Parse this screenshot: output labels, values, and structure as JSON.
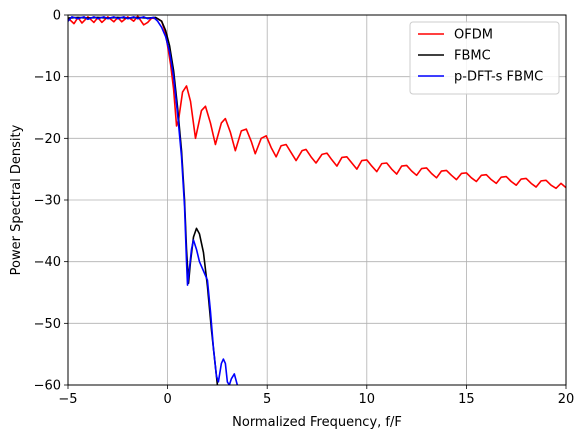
{
  "chart_data": {
    "type": "line",
    "title": "",
    "xlabel": "Normalized Frequency, f/F",
    "ylabel": "Power Spectral Density",
    "xlim": [
      -5,
      20
    ],
    "ylim": [
      -60,
      0
    ],
    "x_ticks": [
      -5,
      0,
      5,
      10,
      15,
      20
    ],
    "x_tick_labels": [
      "−5",
      "0",
      "5",
      "10",
      "15",
      "20"
    ],
    "y_ticks": [
      -60,
      -50,
      -40,
      -30,
      -20,
      -10,
      0
    ],
    "y_tick_labels": [
      "−60",
      "−50",
      "−40",
      "−30",
      "−20",
      "−10",
      "0"
    ],
    "grid": true,
    "legend_position": "top-right",
    "series": [
      {
        "name": "OFDM",
        "color": "#ff0000",
        "points": [
          [
            -5,
            -0.5
          ],
          [
            -4.7,
            -1.4
          ],
          [
            -4.5,
            -0.4
          ],
          [
            -4.3,
            -1.3
          ],
          [
            -4.0,
            -0.3
          ],
          [
            -3.7,
            -1.2
          ],
          [
            -3.5,
            -0.4
          ],
          [
            -3.3,
            -1.2
          ],
          [
            -3.0,
            -0.3
          ],
          [
            -2.7,
            -1.1
          ],
          [
            -2.5,
            -0.4
          ],
          [
            -2.3,
            -1.1
          ],
          [
            -2.0,
            -0.3
          ],
          [
            -1.7,
            -1.0
          ],
          [
            -1.5,
            -0.2
          ],
          [
            -1.2,
            -1.6
          ],
          [
            -1.0,
            -1.2
          ],
          [
            -0.8,
            -0.5
          ],
          [
            -0.5,
            -0.6
          ],
          [
            -0.3,
            -1.0
          ],
          [
            -0.1,
            -3.0
          ],
          [
            0.0,
            -5.0
          ],
          [
            0.15,
            -8.0
          ],
          [
            0.3,
            -12.0
          ],
          [
            0.45,
            -18.0
          ],
          [
            0.55,
            -17.0
          ],
          [
            0.75,
            -12.5
          ],
          [
            0.95,
            -11.5
          ],
          [
            1.15,
            -14.0
          ],
          [
            1.4,
            -20.0
          ],
          [
            1.7,
            -15.5
          ],
          [
            1.9,
            -14.8
          ],
          [
            2.15,
            -17.5
          ],
          [
            2.4,
            -21.0
          ],
          [
            2.7,
            -17.5
          ],
          [
            2.9,
            -16.8
          ],
          [
            3.15,
            -19.0
          ],
          [
            3.4,
            -22.0
          ],
          [
            3.7,
            -18.8
          ],
          [
            3.95,
            -18.5
          ],
          [
            4.2,
            -20.5
          ],
          [
            4.4,
            -22.5
          ],
          [
            4.7,
            -20.0
          ],
          [
            4.95,
            -19.6
          ],
          [
            5.2,
            -21.5
          ],
          [
            5.45,
            -23.0
          ],
          [
            5.7,
            -21.2
          ],
          [
            5.95,
            -21.0
          ],
          [
            6.2,
            -22.3
          ],
          [
            6.45,
            -23.6
          ],
          [
            6.75,
            -22.0
          ],
          [
            6.95,
            -21.8
          ],
          [
            7.2,
            -23.0
          ],
          [
            7.45,
            -24.0
          ],
          [
            7.75,
            -22.6
          ],
          [
            8.0,
            -22.4
          ],
          [
            8.25,
            -23.5
          ],
          [
            8.5,
            -24.5
          ],
          [
            8.75,
            -23.1
          ],
          [
            9.0,
            -23.0
          ],
          [
            9.25,
            -24.0
          ],
          [
            9.5,
            -25.0
          ],
          [
            9.75,
            -23.6
          ],
          [
            10.0,
            -23.5
          ],
          [
            10.25,
            -24.5
          ],
          [
            10.5,
            -25.4
          ],
          [
            10.75,
            -24.1
          ],
          [
            11.0,
            -24.0
          ],
          [
            11.25,
            -25.0
          ],
          [
            11.5,
            -25.8
          ],
          [
            11.75,
            -24.5
          ],
          [
            12.0,
            -24.4
          ],
          [
            12.25,
            -25.3
          ],
          [
            12.5,
            -26.0
          ],
          [
            12.75,
            -24.9
          ],
          [
            13.0,
            -24.8
          ],
          [
            13.25,
            -25.7
          ],
          [
            13.5,
            -26.4
          ],
          [
            13.75,
            -25.3
          ],
          [
            14.0,
            -25.2
          ],
          [
            14.25,
            -26.0
          ],
          [
            14.5,
            -26.7
          ],
          [
            14.75,
            -25.7
          ],
          [
            15.0,
            -25.6
          ],
          [
            15.25,
            -26.4
          ],
          [
            15.5,
            -27.0
          ],
          [
            15.75,
            -26.0
          ],
          [
            16.0,
            -25.9
          ],
          [
            16.25,
            -26.7
          ],
          [
            16.5,
            -27.3
          ],
          [
            16.75,
            -26.3
          ],
          [
            17.0,
            -26.2
          ],
          [
            17.25,
            -27.0
          ],
          [
            17.5,
            -27.6
          ],
          [
            17.75,
            -26.6
          ],
          [
            18.0,
            -26.5
          ],
          [
            18.25,
            -27.3
          ],
          [
            18.5,
            -27.9
          ],
          [
            18.75,
            -26.9
          ],
          [
            19.0,
            -26.8
          ],
          [
            19.25,
            -27.6
          ],
          [
            19.5,
            -28.1
          ],
          [
            19.75,
            -27.3
          ],
          [
            20.0,
            -28.0
          ]
        ]
      },
      {
        "name": "FBMC",
        "color": "#000000",
        "points": [
          [
            -5,
            -0.5
          ],
          [
            -4.5,
            -0.4
          ],
          [
            -4.0,
            -0.5
          ],
          [
            -3.5,
            -0.4
          ],
          [
            -3.0,
            -0.5
          ],
          [
            -2.5,
            -0.4
          ],
          [
            -2.0,
            -0.5
          ],
          [
            -1.5,
            -0.4
          ],
          [
            -1.0,
            -0.5
          ],
          [
            -0.6,
            -0.4
          ],
          [
            -0.3,
            -1.0
          ],
          [
            -0.1,
            -2.5
          ],
          [
            0.1,
            -5.0
          ],
          [
            0.3,
            -9.0
          ],
          [
            0.5,
            -15.0
          ],
          [
            0.7,
            -22.0
          ],
          [
            0.85,
            -30.0
          ],
          [
            0.95,
            -38.0
          ],
          [
            1.05,
            -43.5
          ],
          [
            1.15,
            -40.0
          ],
          [
            1.3,
            -36.0
          ],
          [
            1.45,
            -34.6
          ],
          [
            1.6,
            -35.5
          ],
          [
            1.8,
            -38.5
          ],
          [
            2.0,
            -44.0
          ],
          [
            2.2,
            -51.0
          ],
          [
            2.4,
            -57.0
          ],
          [
            2.5,
            -60.0
          ]
        ]
      },
      {
        "name": "p-DFT-s FBMC",
        "color": "#0000ff",
        "points": [
          [
            -5,
            -1.0
          ],
          [
            -4.8,
            -0.3
          ],
          [
            -4.5,
            -0.6
          ],
          [
            -4.2,
            -0.3
          ],
          [
            -4.0,
            -0.7
          ],
          [
            -3.7,
            -0.3
          ],
          [
            -3.5,
            -0.6
          ],
          [
            -3.2,
            -0.3
          ],
          [
            -3.0,
            -0.6
          ],
          [
            -2.7,
            -0.3
          ],
          [
            -2.5,
            -0.6
          ],
          [
            -2.2,
            -0.3
          ],
          [
            -2.0,
            -0.6
          ],
          [
            -1.7,
            -0.3
          ],
          [
            -1.5,
            -0.6
          ],
          [
            -1.2,
            -0.3
          ],
          [
            -1.0,
            -0.6
          ],
          [
            -0.7,
            -0.4
          ],
          [
            -0.5,
            -1.0
          ],
          [
            -0.3,
            -2.0
          ],
          [
            -0.1,
            -3.5
          ],
          [
            0.1,
            -6.0
          ],
          [
            0.3,
            -10.0
          ],
          [
            0.5,
            -16.0
          ],
          [
            0.7,
            -23.0
          ],
          [
            0.85,
            -31.0
          ],
          [
            0.95,
            -40.0
          ],
          [
            1.0,
            -43.8
          ],
          [
            1.1,
            -41.0
          ],
          [
            1.2,
            -38.0
          ],
          [
            1.3,
            -36.5
          ],
          [
            1.45,
            -38.0
          ],
          [
            1.6,
            -40.0
          ],
          [
            1.8,
            -41.5
          ],
          [
            2.0,
            -43.0
          ],
          [
            2.15,
            -48.0
          ],
          [
            2.3,
            -54.0
          ],
          [
            2.45,
            -58.5
          ],
          [
            2.55,
            -59.5
          ],
          [
            2.7,
            -56.5
          ],
          [
            2.8,
            -55.8
          ],
          [
            2.9,
            -56.5
          ],
          [
            3.0,
            -59.5
          ],
          [
            3.1,
            -60.0
          ],
          [
            3.2,
            -59.0
          ],
          [
            3.35,
            -58.2
          ],
          [
            3.5,
            -60.0
          ]
        ]
      }
    ]
  }
}
